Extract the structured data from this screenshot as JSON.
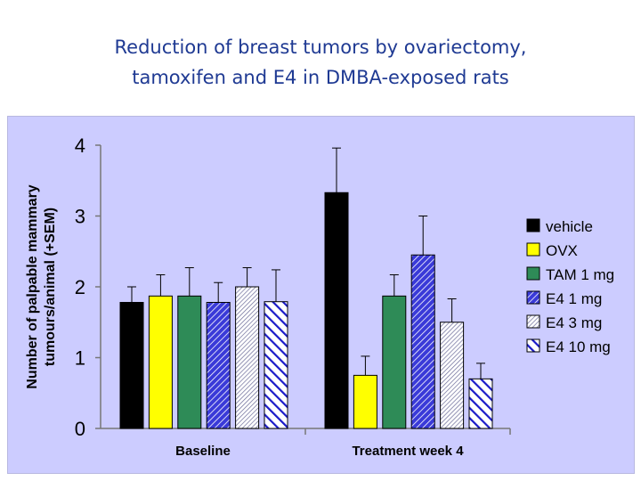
{
  "slide": {
    "title_line1": "Reduction of breast tumors by ovariectomy,",
    "title_line2": "tamoxifen and E4 in DMBA-exposed rats"
  },
  "chart_data": {
    "type": "bar",
    "title": "",
    "xlabel": "",
    "ylabel_line1": "Number of palpable mammary",
    "ylabel_line2": "tumours/animal (+SEM)",
    "ylim": [
      0,
      4
    ],
    "yticks": [
      "0",
      "1",
      "2",
      "3",
      "4"
    ],
    "categories": [
      "Baseline",
      "Treatment week 4"
    ],
    "legend_position": "right",
    "series": [
      {
        "name": "vehicle",
        "values": [
          1.78,
          3.33
        ],
        "errors": [
          0.22,
          0.63
        ],
        "color": "#000000",
        "pattern": "solid"
      },
      {
        "name": "OVX",
        "values": [
          1.87,
          0.75
        ],
        "errors": [
          0.3,
          0.27
        ],
        "color": "#ffff00",
        "pattern": "solid"
      },
      {
        "name": "TAM 1 mg",
        "values": [
          1.87,
          1.87
        ],
        "errors": [
          0.4,
          0.3
        ],
        "color": "#2e8b57",
        "pattern": "solid"
      },
      {
        "name": "E4 1 mg",
        "values": [
          1.78,
          2.45
        ],
        "errors": [
          0.28,
          0.55
        ],
        "color": "#2323c8",
        "pattern": "dense-diagonal"
      },
      {
        "name": "E4 3 mg",
        "values": [
          2.0,
          1.5
        ],
        "errors": [
          0.27,
          0.33
        ],
        "color": "#7070a0",
        "pattern": "fine-diagonal"
      },
      {
        "name": "E4 10 mg",
        "values": [
          1.79,
          0.7
        ],
        "errors": [
          0.45,
          0.22
        ],
        "color": "#1a1ac8",
        "pattern": "wide-diagonal"
      }
    ]
  }
}
